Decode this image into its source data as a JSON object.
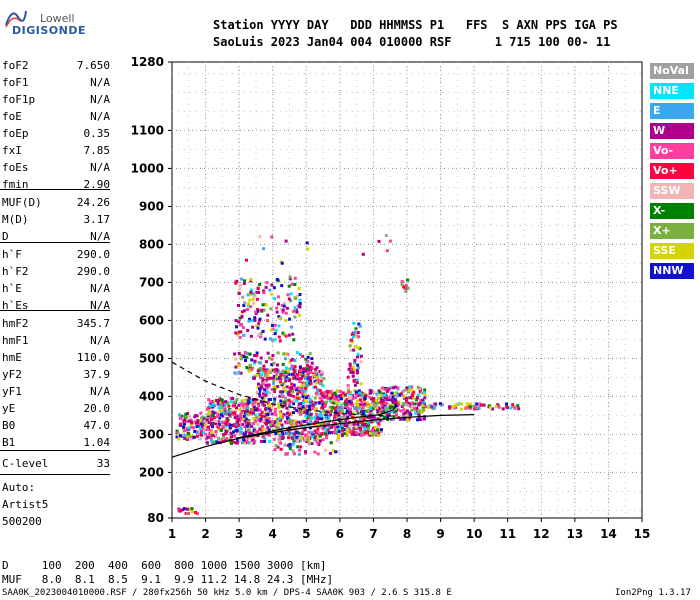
{
  "logo": {
    "company": "Lowell",
    "product": "DIGISONDE"
  },
  "header": {
    "line1": "Station YYYY DAY   DDD HHMMSS P1   FFS  S AXN PPS IGA PS",
    "line2": "SaoLuis 2023 Jan04 004 010000 RSF      1 715 100 00- 11"
  },
  "params": [
    {
      "name": "foF2",
      "value": "7.650"
    },
    {
      "name": "foF1",
      "value": "N/A"
    },
    {
      "name": "foF1p",
      "value": "N/A"
    },
    {
      "name": "foE",
      "value": "N/A"
    },
    {
      "name": "foEp",
      "value": "0.35"
    },
    {
      "name": "fxI",
      "value": "7.85"
    },
    {
      "name": "foEs",
      "value": "N/A"
    },
    {
      "name": "fmin",
      "value": "2.90"
    },
    {
      "name": "MUF(D)",
      "value": "24.26"
    },
    {
      "name": "M(D)",
      "value": "3.17"
    },
    {
      "name": "D",
      "value": "N/A"
    },
    {
      "name": "h`F",
      "value": "290.0"
    },
    {
      "name": "h`F2",
      "value": "290.0"
    },
    {
      "name": "h`E",
      "value": "N/A"
    },
    {
      "name": "h`Es",
      "value": "N/A"
    },
    {
      "name": "hmF2",
      "value": "345.7"
    },
    {
      "name": "hmF1",
      "value": "N/A"
    },
    {
      "name": "hmE",
      "value": "110.0"
    },
    {
      "name": "yF2",
      "value": "37.9"
    },
    {
      "name": "yF1",
      "value": "N/A"
    },
    {
      "name": "yE",
      "value": "20.0"
    },
    {
      "name": "B0",
      "value": "47.0"
    },
    {
      "name": "B1",
      "value": "1.04"
    },
    {
      "name": "C-level",
      "value": "33"
    }
  ],
  "auto_lines": [
    "Auto:",
    "Artist5",
    "500200"
  ],
  "legend": [
    {
      "label": "NoVal",
      "color": "#a0a0a0"
    },
    {
      "label": "NNE",
      "color": "#00e5ff"
    },
    {
      "label": "E",
      "color": "#3aa8f0"
    },
    {
      "label": "W",
      "color": "#b0008a"
    },
    {
      "label": "Vo-",
      "color": "#ff3fa0"
    },
    {
      "label": "Vo+",
      "color": "#ff0040"
    },
    {
      "label": "SSW",
      "color": "#f4b4b4"
    },
    {
      "label": "X-",
      "color": "#008000"
    },
    {
      "label": "X+",
      "color": "#7ab040"
    },
    {
      "label": "SSE",
      "color": "#d4d400"
    },
    {
      "label": "NNW",
      "color": "#1010d0"
    }
  ],
  "footer": {
    "d_row": "D     100  200  400  600  800 1000 1500 3000 [km]",
    "muf_row": "MUF   8.0  8.1  8.5  9.1  9.9 11.2 14.8 24.3 [MHz]",
    "file_info": "SAA0K_2023004010000.RSF / 280fx256h 50 kHz 5.0 km / DPS-4 SAA0K 903 / 2.6 S 315.8 E",
    "version": "Ion2Png 1.3.17"
  },
  "chart_data": {
    "type": "scatter",
    "x_ticks": [
      1,
      2,
      3,
      4,
      5,
      6,
      7,
      8,
      9,
      10,
      11,
      12,
      13,
      14,
      15
    ],
    "y_ticks": [
      80,
      200,
      300,
      400,
      500,
      600,
      700,
      800,
      900,
      1000,
      1100,
      1280
    ],
    "xlim": [
      1,
      15
    ],
    "ylim": [
      80,
      1280
    ],
    "profile_curve": [
      [
        1,
        240
      ],
      [
        2,
        268
      ],
      [
        3,
        290
      ],
      [
        4,
        305
      ],
      [
        5,
        318
      ],
      [
        6,
        328
      ],
      [
        7,
        338
      ],
      [
        8,
        345
      ],
      [
        9,
        350
      ],
      [
        10,
        352
      ]
    ],
    "trace_curve": [
      [
        2.9,
        290
      ],
      [
        3.5,
        300
      ],
      [
        4.5,
        318
      ],
      [
        5.5,
        332
      ],
      [
        6.5,
        345
      ],
      [
        7.2,
        352
      ],
      [
        7.6,
        365
      ],
      [
        7.7,
        380
      ]
    ],
    "dashed_curve": [
      [
        1,
        490
      ],
      [
        1.5,
        465
      ],
      [
        2,
        440
      ],
      [
        3,
        405
      ],
      [
        4,
        380
      ],
      [
        5,
        365
      ],
      [
        6,
        355
      ],
      [
        7,
        350
      ],
      [
        7.7,
        348
      ]
    ],
    "echo_clusters": [
      {
        "x": [
          1.1,
          2.0
        ],
        "y": [
          290,
          360
        ],
        "n": 120
      },
      {
        "x": [
          2.0,
          3.5
        ],
        "y": [
          280,
          400
        ],
        "n": 380
      },
      {
        "x": [
          3.5,
          5.5
        ],
        "y": [
          285,
          480
        ],
        "n": 650
      },
      {
        "x": [
          5.5,
          7.2
        ],
        "y": [
          300,
          420
        ],
        "n": 480
      },
      {
        "x": [
          7.2,
          8.5
        ],
        "y": [
          340,
          430
        ],
        "n": 220
      },
      {
        "x": [
          8.5,
          11.3
        ],
        "y": [
          370,
          385
        ],
        "n": 70
      },
      {
        "x": [
          2.8,
          5.2
        ],
        "y": [
          450,
          520
        ],
        "n": 120
      },
      {
        "x": [
          2.8,
          4.8
        ],
        "y": [
          550,
          720
        ],
        "n": 160
      },
      {
        "x": [
          4.0,
          6.0
        ],
        "y": [
          250,
          300
        ],
        "n": 60
      },
      {
        "x": [
          6.2,
          6.6
        ],
        "y": [
          420,
          600
        ],
        "n": 60
      },
      {
        "x": [
          7.8,
          8.0
        ],
        "y": [
          680,
          720
        ],
        "n": 12
      },
      {
        "x": [
          1.15,
          1.75
        ],
        "y": [
          95,
          110
        ],
        "n": 16
      },
      {
        "x": [
          3.0,
          7.5
        ],
        "y": [
          750,
          830
        ],
        "n": 14
      }
    ]
  }
}
